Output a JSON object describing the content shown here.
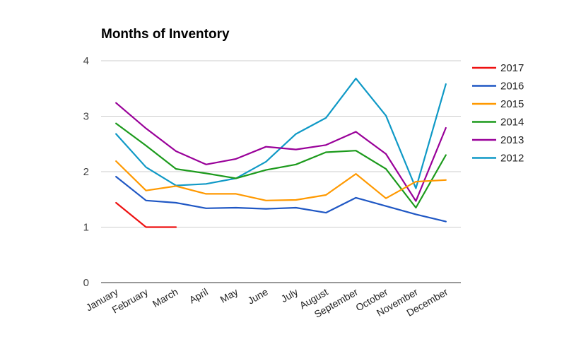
{
  "chart_data": {
    "type": "line",
    "title": "Months of Inventory",
    "xlabel": "",
    "ylabel": "",
    "categories": [
      "January",
      "February",
      "March",
      "April",
      "May",
      "June",
      "July",
      "August",
      "September",
      "October",
      "November",
      "December"
    ],
    "yticks": [
      "0",
      "1",
      "2",
      "3",
      "4"
    ],
    "ylim": [
      0,
      4
    ],
    "grid": true,
    "legend_position": "right",
    "series": [
      {
        "name": "2017",
        "color": "#ee1111",
        "values": [
          1.44,
          1.0,
          1.0,
          null,
          null,
          null,
          null,
          null,
          null,
          null,
          null,
          null
        ]
      },
      {
        "name": "2016",
        "color": "#1f57c4",
        "values": [
          1.91,
          1.48,
          1.44,
          1.34,
          1.35,
          1.33,
          1.35,
          1.26,
          1.53,
          1.38,
          1.23,
          1.1
        ]
      },
      {
        "name": "2015",
        "color": "#ff9900",
        "values": [
          2.19,
          1.66,
          1.74,
          1.6,
          1.6,
          1.48,
          1.49,
          1.58,
          1.96,
          1.52,
          1.82,
          1.85
        ]
      },
      {
        "name": "2014",
        "color": "#1c9a1c",
        "values": [
          2.87,
          2.47,
          2.05,
          1.97,
          1.88,
          2.03,
          2.13,
          2.35,
          2.38,
          2.05,
          1.35,
          2.3
        ]
      },
      {
        "name": "2013",
        "color": "#990099",
        "values": [
          3.24,
          2.78,
          2.37,
          2.13,
          2.23,
          2.45,
          2.4,
          2.48,
          2.72,
          2.32,
          1.47,
          2.79
        ]
      },
      {
        "name": "2012",
        "color": "#0f99c6",
        "values": [
          2.68,
          2.08,
          1.75,
          1.78,
          1.88,
          2.18,
          2.68,
          2.97,
          3.68,
          3.01,
          1.7,
          3.58
        ]
      }
    ]
  }
}
